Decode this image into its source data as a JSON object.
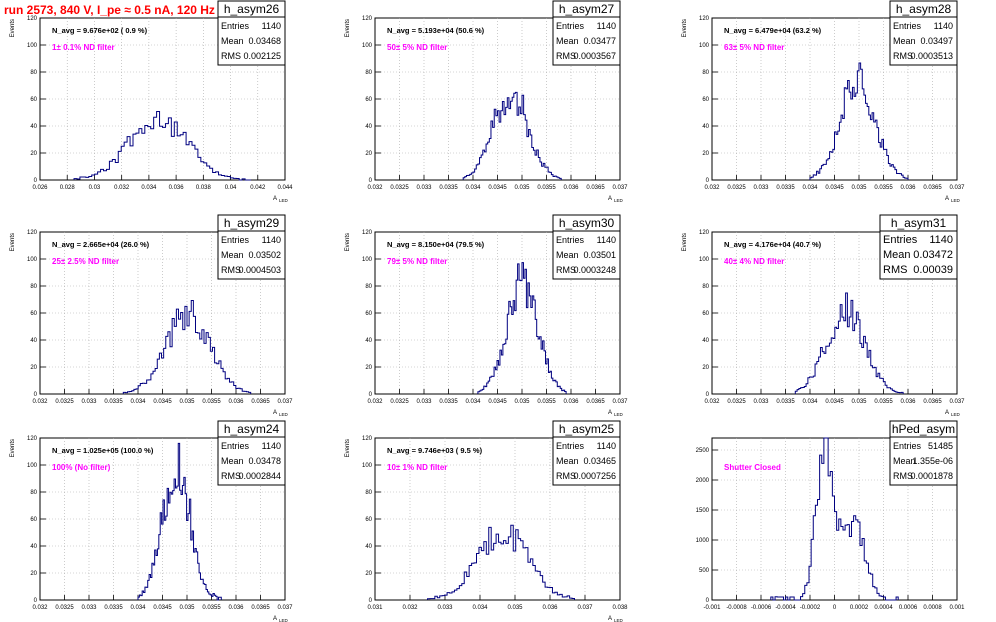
{
  "page": {
    "title": "run 2573,   840 V, I_pe ≈ 0.5 nA, 120 Hz"
  },
  "chart_data": [
    {
      "type": "histogram",
      "name": "h_asym26",
      "stats": {
        "Entries": "1140",
        "Mean": "0.03468",
        "RMS": "0.002125"
      },
      "navg": "N_avg = 9.676e+02 ( 0.9 %)",
      "filter": "1± 0.1% ND filter",
      "ylabel": "Events",
      "xlabel": "A",
      "xlabel_sub": "LED",
      "xlim": [
        0.026,
        0.044
      ],
      "ylim": [
        0,
        120
      ],
      "xticks": [
        "0.026",
        "0.028",
        "0.03",
        "0.032",
        "0.034",
        "0.036",
        "0.038",
        "0.04",
        "0.042",
        "0.044"
      ],
      "yticks": [
        "0",
        "20",
        "40",
        "60",
        "80",
        "100",
        "120"
      ],
      "grid": true,
      "bins": {
        "x0": 0.0285,
        "x1": 0.0415,
        "mean": 0.03468,
        "sigma": 0.0021,
        "peak": 46,
        "seed": 11
      }
    },
    {
      "type": "histogram",
      "name": "h_asym27",
      "stats": {
        "Entries": "1140",
        "Mean": "0.03477",
        "RMS": "0.0003567"
      },
      "navg": "N_avg = 5.193e+04 (50.6 %)",
      "filter": "50± 5% ND filter",
      "ylabel": "Events",
      "xlabel": "A",
      "xlabel_sub": "LED",
      "xlim": [
        0.032,
        0.037
      ],
      "ylim": [
        0,
        120
      ],
      "xticks": [
        "0.032",
        "0.0325",
        "0.033",
        "0.0335",
        "0.034",
        "0.0345",
        "0.035",
        "0.0355",
        "0.036",
        "0.0365",
        "0.037"
      ],
      "yticks": [
        "0",
        "20",
        "40",
        "60",
        "80",
        "100",
        "120"
      ],
      "grid": true,
      "bins": {
        "x0": 0.0338,
        "x1": 0.0358,
        "mean": 0.03477,
        "sigma": 0.00036,
        "peak": 64,
        "seed": 23
      }
    },
    {
      "type": "histogram",
      "name": "h_asym28",
      "stats": {
        "Entries": "1140",
        "Mean": "0.03497",
        "RMS": "0.0003513"
      },
      "navg": "N_avg = 6.479e+04 (63.2 %)",
      "filter": "63± 5% ND filter",
      "ylabel": "Events",
      "xlabel": "A",
      "xlabel_sub": "LED",
      "xlim": [
        0.032,
        0.037
      ],
      "ylim": [
        0,
        120
      ],
      "xticks": [
        "0.032",
        "0.0325",
        "0.033",
        "0.0335",
        "0.034",
        "0.0345",
        "0.035",
        "0.0355",
        "0.036",
        "0.0365",
        "0.037"
      ],
      "yticks": [
        "0",
        "20",
        "40",
        "60",
        "80",
        "100",
        "120"
      ],
      "grid": true,
      "bins": {
        "x0": 0.034,
        "x1": 0.036,
        "mean": 0.03497,
        "sigma": 0.00035,
        "peak": 76,
        "seed": 37
      }
    },
    {
      "type": "histogram",
      "name": "h_asym29",
      "stats": {
        "Entries": "1140",
        "Mean": "0.03502",
        "RMS": "0.0004503"
      },
      "navg": "N_avg = 2.665e+04 (26.0 %)",
      "filter": "25± 2.5% ND filter",
      "ylabel": "Events",
      "xlabel": "A",
      "xlabel_sub": "LED",
      "xlim": [
        0.032,
        0.037
      ],
      "ylim": [
        0,
        120
      ],
      "xticks": [
        "0.032",
        "0.0325",
        "0.033",
        "0.0335",
        "0.034",
        "0.0345",
        "0.035",
        "0.0355",
        "0.036",
        "0.0365",
        "0.037"
      ],
      "yticks": [
        "0",
        "20",
        "40",
        "60",
        "80",
        "100",
        "120"
      ],
      "grid": true,
      "bins": {
        "x0": 0.0337,
        "x1": 0.0363,
        "mean": 0.03502,
        "sigma": 0.00045,
        "peak": 58,
        "seed": 41
      }
    },
    {
      "type": "histogram",
      "name": "h_asym30",
      "stats": {
        "Entries": "1140",
        "Mean": "0.03501",
        "RMS": "0.0003248"
      },
      "navg": "N_avg = 8.150e+04 (79.5 %)",
      "filter": "79± 5% ND filter",
      "ylabel": "Events",
      "xlabel": "A",
      "xlabel_sub": "LED",
      "xlim": [
        0.032,
        0.037
      ],
      "ylim": [
        0,
        120
      ],
      "xticks": [
        "0.032",
        "0.0325",
        "0.033",
        "0.0335",
        "0.034",
        "0.0345",
        "0.035",
        "0.0355",
        "0.036",
        "0.0365",
        "0.037"
      ],
      "yticks": [
        "0",
        "20",
        "40",
        "60",
        "80",
        "100",
        "120"
      ],
      "grid": true,
      "bins": {
        "x0": 0.0341,
        "x1": 0.0359,
        "mean": 0.03501,
        "sigma": 0.00032,
        "peak": 82,
        "seed": 53
      }
    },
    {
      "type": "histogram",
      "name": "h_asym31",
      "stats": {
        "Entries": "1140",
        "Mean": "0.03472",
        "RMS": "0.00039"
      },
      "stats_large": true,
      "navg": "N_avg = 4.176e+04 (40.7 %)",
      "filter": "40± 4% ND filter",
      "ylabel": "Events",
      "xlabel": "A",
      "xlabel_sub": "LED",
      "xlim": [
        0.032,
        0.037
      ],
      "ylim": [
        0,
        120
      ],
      "xticks": [
        "0.032",
        "0.0325",
        "0.033",
        "0.0335",
        "0.034",
        "0.0345",
        "0.035",
        "0.0355",
        "0.036",
        "0.0365",
        "0.037"
      ],
      "yticks": [
        "0",
        "20",
        "40",
        "60",
        "80",
        "100",
        "120"
      ],
      "grid": true,
      "bins": {
        "x0": 0.0337,
        "x1": 0.0359,
        "mean": 0.03472,
        "sigma": 0.00039,
        "peak": 62,
        "seed": 67
      }
    },
    {
      "type": "histogram",
      "name": "h_asym24",
      "stats": {
        "Entries": "1140",
        "Mean": "0.03478",
        "RMS": "0.0002844"
      },
      "navg": "N_avg = 1.025e+05 (100.0 %)",
      "filter": "100% (No filter)",
      "ylabel": "Events",
      "xlabel": "A",
      "xlabel_sub": "LED",
      "xlim": [
        0.032,
        0.037
      ],
      "ylim": [
        0,
        120
      ],
      "xticks": [
        "0.032",
        "0.0325",
        "0.033",
        "0.0335",
        "0.034",
        "0.0345",
        "0.035",
        "0.0355",
        "0.036",
        "0.0365",
        "0.037"
      ],
      "yticks": [
        "0",
        "20",
        "40",
        "60",
        "80",
        "100",
        "120"
      ],
      "grid": true,
      "bins": {
        "x0": 0.034,
        "x1": 0.0357,
        "mean": 0.03478,
        "sigma": 0.00028,
        "peak": 100,
        "seed": 79
      }
    },
    {
      "type": "histogram",
      "name": "h_asym25",
      "stats": {
        "Entries": "1140",
        "Mean": "0.03465",
        "RMS": "0.0007256"
      },
      "navg": "N_avg = 9.746e+03 ( 9.5 %)",
      "filter": "10± 1% ND filter",
      "ylabel": "Events",
      "xlabel": "A",
      "xlabel_sub": "LED",
      "xlim": [
        0.031,
        0.038
      ],
      "ylim": [
        0,
        120
      ],
      "xticks": [
        "0.031",
        "0.032",
        "0.033",
        "0.034",
        "0.035",
        "0.036",
        "0.037",
        "0.038"
      ],
      "yticks": [
        "0",
        "20",
        "40",
        "60",
        "80",
        "100",
        "120"
      ],
      "grid": true,
      "bins": {
        "x0": 0.0325,
        "x1": 0.0367,
        "mean": 0.03465,
        "sigma": 0.00072,
        "peak": 50,
        "seed": 97
      }
    },
    {
      "type": "histogram",
      "name": "hPed_asym",
      "stats": {
        "Entries": "51485",
        "Mean": "1.355e-06",
        "RMS": "0.0001878"
      },
      "filter": "Shutter Closed",
      "ylabel": "",
      "xlabel": "",
      "xlabel_sub": "",
      "xlim": [
        -0.001,
        0.001
      ],
      "ylim": [
        0,
        2700
      ],
      "xticks": [
        "-0.001",
        "-0.0008",
        "-0.0006",
        "-0.0004",
        "-0.0002",
        "0",
        "0.0002",
        "0.0004",
        "0.0006",
        "0.0008",
        "0.001"
      ],
      "yticks": [
        "0",
        "500",
        "1000",
        "1500",
        "2000",
        "2500"
      ],
      "grid": true,
      "bins": {
        "x0": -0.00052,
        "x1": 0.00052,
        "mean": -8e-05,
        "sigma": 7e-05,
        "peak": 2480,
        "mean2": 0.00016,
        "sigma2": 9e-05,
        "peak2": 1300,
        "seed": 101
      }
    }
  ]
}
